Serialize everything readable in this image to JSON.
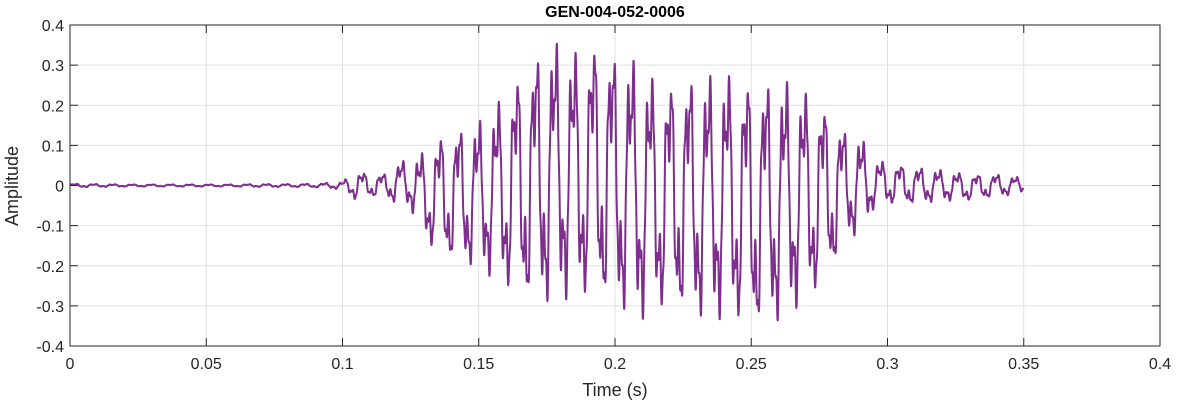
{
  "chart_data": {
    "type": "line",
    "title": "GEN-004-052-0006",
    "xlabel": "Time (s)",
    "ylabel": "Amplitude",
    "xlim": [
      0,
      0.4
    ],
    "ylim": [
      -0.4,
      0.4
    ],
    "xticks": [
      0,
      0.05,
      0.1,
      0.15,
      0.2,
      0.25,
      0.3,
      0.35,
      0.4
    ],
    "yticks": [
      -0.4,
      -0.3,
      -0.2,
      -0.1,
      0,
      0.1,
      0.2,
      0.3,
      0.4
    ],
    "xtick_labels": [
      "0",
      "0.05",
      "0.1",
      "0.15",
      "0.2",
      "0.25",
      "0.3",
      "0.35",
      "0.4"
    ],
    "ytick_labels": [
      "-0.4",
      "-0.3",
      "-0.2",
      "-0.1",
      "0",
      "0.1",
      "0.2",
      "0.3",
      "0.4"
    ],
    "grid": true,
    "line_color": "#7E2F8E",
    "series": [
      {
        "name": "",
        "x": [
          0.0,
          0.01,
          0.02,
          0.03,
          0.04,
          0.05,
          0.06,
          0.07,
          0.08,
          0.09,
          0.1,
          0.105,
          0.11,
          0.115,
          0.12,
          0.125,
          0.13,
          0.135,
          0.14,
          0.145,
          0.15,
          0.155,
          0.16,
          0.165,
          0.17,
          0.175,
          0.18,
          0.185,
          0.19,
          0.195,
          0.2,
          0.205,
          0.21,
          0.215,
          0.22,
          0.225,
          0.23,
          0.235,
          0.24,
          0.245,
          0.25,
          0.255,
          0.26,
          0.265,
          0.27,
          0.275,
          0.28,
          0.285,
          0.29,
          0.295,
          0.3,
          0.31,
          0.32,
          0.33,
          0.34,
          0.35
        ],
        "envelope_upper": [
          0.005,
          0.004,
          0.003,
          0.003,
          0.003,
          0.003,
          0.003,
          0.004,
          0.004,
          0.005,
          0.01,
          0.04,
          0.03,
          0.03,
          0.06,
          0.07,
          0.09,
          0.13,
          0.15,
          0.16,
          0.17,
          0.2,
          0.25,
          0.3,
          0.34,
          0.38,
          0.37,
          0.35,
          0.37,
          0.39,
          0.35,
          0.34,
          0.31,
          0.28,
          0.28,
          0.29,
          0.29,
          0.29,
          0.3,
          0.29,
          0.29,
          0.28,
          0.28,
          0.27,
          0.25,
          0.23,
          0.19,
          0.14,
          0.13,
          0.07,
          0.06,
          0.05,
          0.04,
          0.03,
          0.03,
          0.02
        ],
        "envelope_lower": [
          -0.005,
          -0.004,
          -0.003,
          -0.003,
          -0.003,
          -0.003,
          -0.003,
          -0.004,
          -0.004,
          -0.005,
          -0.01,
          -0.04,
          -0.03,
          -0.03,
          -0.05,
          -0.06,
          -0.14,
          -0.18,
          -0.2,
          -0.21,
          -0.22,
          -0.24,
          -0.27,
          -0.3,
          -0.32,
          -0.32,
          -0.3,
          -0.3,
          -0.3,
          -0.31,
          -0.33,
          -0.34,
          -0.35,
          -0.33,
          -0.33,
          -0.34,
          -0.35,
          -0.35,
          -0.35,
          -0.36,
          -0.39,
          -0.37,
          -0.36,
          -0.33,
          -0.3,
          -0.28,
          -0.22,
          -0.14,
          -0.13,
          -0.06,
          -0.05,
          -0.05,
          -0.04,
          -0.04,
          -0.03,
          -0.02
        ]
      }
    ]
  }
}
